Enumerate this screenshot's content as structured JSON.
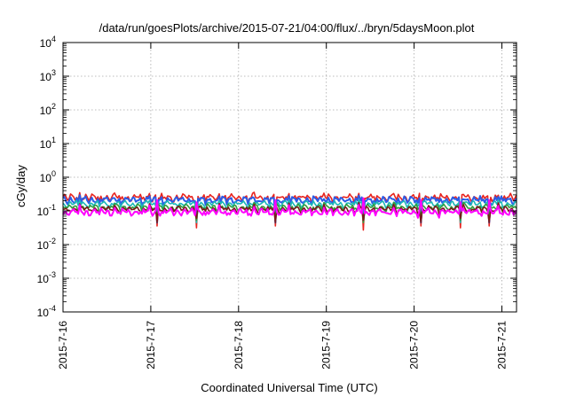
{
  "chart_data": {
    "type": "line",
    "title": "/data/run/goesPlots/archive/2015-07-21/04:00/flux/../bryn/5daysMoon.plot",
    "xlabel": "Coordinated Universal Time (UTC)",
    "ylabel": "cGy/day",
    "yscale": "log",
    "ylim": [
      0.0001,
      10000
    ],
    "xlim": [
      "2015-07-16 00:00",
      "2015-07-21 04:00"
    ],
    "grid": true,
    "legend": "none",
    "y_ticks": [
      {
        "base": "10",
        "exp": "-4"
      },
      {
        "base": "10",
        "exp": "-3"
      },
      {
        "base": "10",
        "exp": "-2"
      },
      {
        "base": "10",
        "exp": "-1"
      },
      {
        "base": "10",
        "exp": "0"
      },
      {
        "base": "10",
        "exp": "1"
      },
      {
        "base": "10",
        "exp": "2"
      },
      {
        "base": "10",
        "exp": "3"
      },
      {
        "base": "10",
        "exp": "4"
      }
    ],
    "x_ticks": [
      "2015-7-16",
      "2015-7-17",
      "2015-7-18",
      "2015-7-19",
      "2015-7-20",
      "2015-7-21"
    ],
    "series": [
      {
        "color": "#e8231e",
        "level": 0.25,
        "dips": 0.03,
        "values": [
          0.25,
          0.27,
          0.24,
          0.26,
          0.23,
          0.28,
          0.25,
          0.26,
          0.24,
          0.27
        ]
      },
      {
        "color": "#2b5ce6",
        "level": 0.21,
        "dips": 0.05,
        "values": [
          0.21,
          0.23,
          0.2,
          0.22,
          0.2,
          0.24,
          0.21,
          0.22,
          0.2,
          0.23
        ]
      },
      {
        "color": "#1bb8b8",
        "level": 0.165,
        "dips": 0.05,
        "values": [
          0.165,
          0.17,
          0.16,
          0.168,
          0.158,
          0.172,
          0.165,
          0.167,
          0.16,
          0.17
        ]
      },
      {
        "color": "#2e9e3e",
        "level": 0.13,
        "dips": 0.05,
        "values": [
          0.13,
          0.135,
          0.127,
          0.132,
          0.125,
          0.136,
          0.13,
          0.131,
          0.127,
          0.134
        ]
      },
      {
        "color": "#7a1a1a",
        "level": 0.115,
        "dips": 0.05,
        "values": [
          0.115,
          0.118,
          0.112,
          0.116,
          0.11,
          0.12,
          0.115,
          0.116,
          0.112,
          0.118
        ]
      },
      {
        "color": "#ff00ff",
        "level": 0.095,
        "dips": 0.2,
        "values": [
          0.095,
          0.1,
          0.09,
          0.097,
          0.088,
          0.1,
          0.095,
          0.096,
          0.09,
          0.098
        ]
      }
    ]
  }
}
